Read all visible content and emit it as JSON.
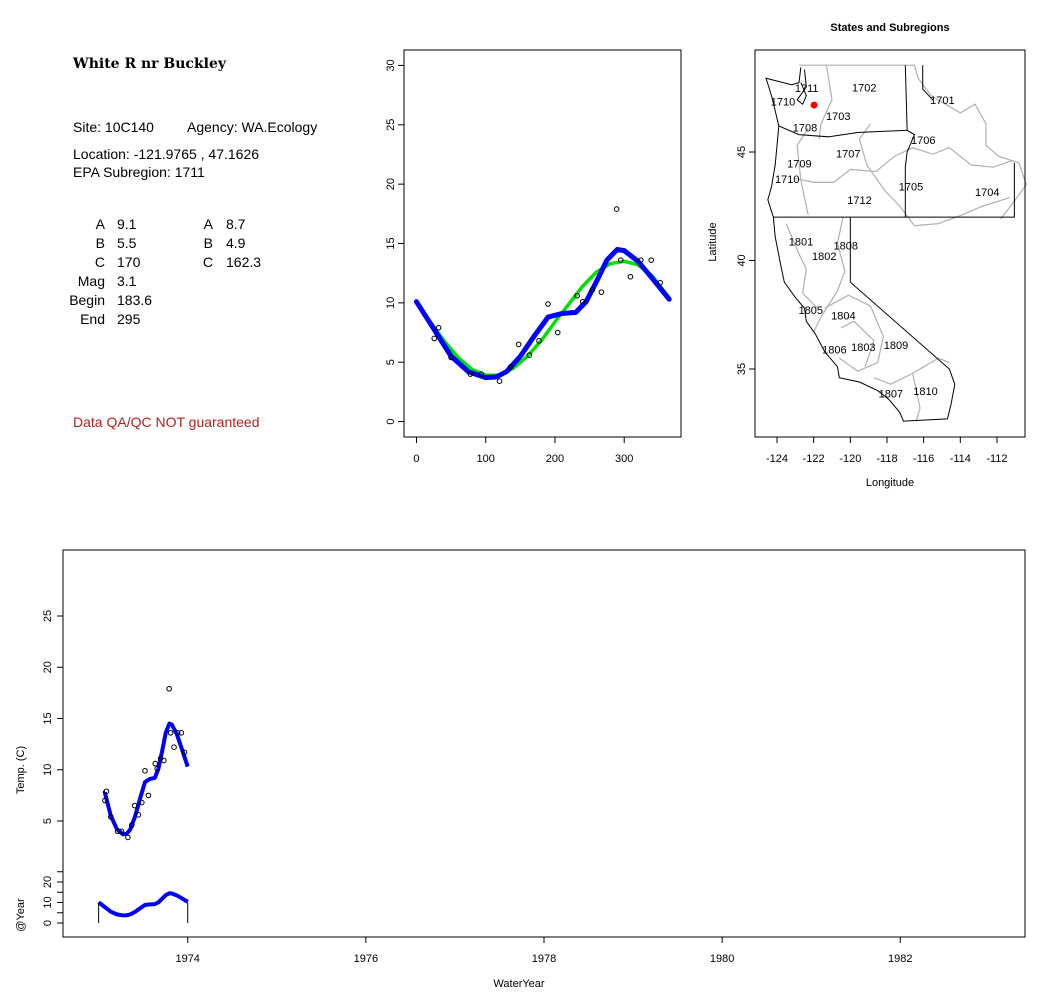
{
  "info": {
    "site_title": "White R nr Buckley",
    "site_label": "Site: 10C140",
    "agency_label": "Agency: WA.Ecology",
    "location_label": "Location: -121.9765 , 47.1626",
    "subregion_label": "EPA Subregion: 1711",
    "params_left": [
      {
        "name": "A",
        "value": "9.1"
      },
      {
        "name": "B",
        "value": "5.5"
      },
      {
        "name": "C",
        "value": "170"
      },
      {
        "name": "Mag",
        "value": "3.1"
      },
      {
        "name": "Begin",
        "value": "183.6"
      },
      {
        "name": "End",
        "value": "295"
      }
    ],
    "params_right": [
      {
        "name": "A",
        "value": "8.7"
      },
      {
        "name": "B",
        "value": "4.9"
      },
      {
        "name": "C",
        "value": "162.3"
      }
    ],
    "qa_note": "Data QA/QC NOT guaranteed"
  },
  "chart_data": [
    {
      "type": "scatter",
      "panel": "seasonal",
      "xlim": [
        -18,
        382
      ],
      "ylim": [
        -1.3,
        31.3
      ],
      "x_ticks": [
        0,
        100,
        200,
        300
      ],
      "y_ticks": [
        0,
        5,
        10,
        15,
        20,
        25,
        30
      ],
      "points": [
        [
          25.7,
          7.0
        ],
        [
          32,
          7.9
        ],
        [
          50,
          5.4
        ],
        [
          77.7,
          4.0
        ],
        [
          93.7,
          4.0
        ],
        [
          120,
          3.4
        ],
        [
          136,
          4.6
        ],
        [
          147.6,
          6.5
        ],
        [
          163,
          5.6
        ],
        [
          177,
          6.8
        ],
        [
          190,
          9.9
        ],
        [
          204,
          7.5
        ],
        [
          232,
          10.6
        ],
        [
          240,
          10.1
        ],
        [
          254,
          11.1
        ],
        [
          267,
          10.9
        ],
        [
          289,
          17.9
        ],
        [
          295,
          13.6
        ],
        [
          309,
          12.2
        ],
        [
          324,
          13.6
        ],
        [
          339,
          13.6
        ],
        [
          352,
          11.7
        ]
      ],
      "series": [
        {
          "color": "#00e000",
          "x": [
            0,
            20,
            40,
            60,
            80,
            100,
            120,
            140,
            160,
            180,
            200,
            220,
            240,
            260,
            280,
            300,
            320,
            340,
            365
          ],
          "y": [
            10.0,
            8.4,
            6.8,
            5.4,
            4.4,
            3.9,
            3.9,
            4.5,
            5.5,
            6.8,
            8.4,
            9.9,
            11.4,
            12.6,
            13.3,
            13.5,
            13.2,
            12.3,
            10.4
          ]
        },
        {
          "color": "#0000ff",
          "x": [
            0,
            25,
            50,
            75,
            100,
            115,
            130,
            150,
            170,
            190,
            210,
            230,
            245,
            260,
            275,
            290,
            300,
            320,
            340,
            365
          ],
          "y": [
            10.1,
            7.8,
            5.5,
            4.2,
            3.7,
            3.75,
            4.2,
            5.5,
            7.2,
            8.8,
            9.1,
            9.2,
            10.1,
            11.8,
            13.6,
            14.5,
            14.4,
            13.5,
            12.1,
            10.3
          ]
        }
      ]
    },
    {
      "type": "map",
      "title": "States and Subregions",
      "xlabel": "Longitude",
      "ylabel": "Latitude",
      "xlim": [
        -125.2,
        -110.4
      ],
      "ylim": [
        32.3,
        50.1
      ],
      "x_ticks": [
        -124,
        -122,
        -120,
        -118,
        -116,
        -114,
        -112
      ],
      "y_ticks": [
        35,
        40,
        45
      ],
      "site": {
        "lon": -121.9765,
        "lat": 47.1626,
        "color": "#ff0000"
      },
      "labels": [
        {
          "text": "1711",
          "lon": -122.38,
          "lat": 47.94
        },
        {
          "text": "1710",
          "lon": -123.67,
          "lat": 47.32
        },
        {
          "text": "1702",
          "lon": -119.24,
          "lat": 47.98
        },
        {
          "text": "1701",
          "lon": -114.98,
          "lat": 47.4
        },
        {
          "text": "1703",
          "lon": -120.66,
          "lat": 46.66
        },
        {
          "text": "1708",
          "lon": -122.47,
          "lat": 46.12
        },
        {
          "text": "1706",
          "lon": -116.02,
          "lat": 45.55
        },
        {
          "text": "1707",
          "lon": -120.11,
          "lat": 44.94
        },
        {
          "text": "1709",
          "lon": -122.78,
          "lat": 44.48
        },
        {
          "text": "1710",
          "lon": -123.44,
          "lat": 43.76
        },
        {
          "text": "1705",
          "lon": -116.69,
          "lat": 43.4
        },
        {
          "text": "1704",
          "lon": -112.53,
          "lat": 43.16
        },
        {
          "text": "1712",
          "lon": -119.5,
          "lat": 42.79
        },
        {
          "text": "1801",
          "lon": -122.69,
          "lat": 40.87
        },
        {
          "text": "1808",
          "lon": -120.25,
          "lat": 40.68
        },
        {
          "text": "1802",
          "lon": -121.42,
          "lat": 40.21
        },
        {
          "text": "1805",
          "lon": -122.16,
          "lat": 37.72
        },
        {
          "text": "1804",
          "lon": -120.38,
          "lat": 37.46
        },
        {
          "text": "1806",
          "lon": -120.87,
          "lat": 35.91
        },
        {
          "text": "1803",
          "lon": -119.29,
          "lat": 36.01
        },
        {
          "text": "1809",
          "lon": -117.51,
          "lat": 36.11
        },
        {
          "text": "1810",
          "lon": -115.9,
          "lat": 33.99
        },
        {
          "text": "1807",
          "lon": -117.79,
          "lat": 33.86
        }
      ]
    },
    {
      "type": "line",
      "panel": "timeseries",
      "xlabel": "WaterYear",
      "ylabel": "Temp. (C)",
      "ylabel2": "@Year",
      "xlim": [
        1972.6,
        1983.4
      ],
      "x_ticks": [
        1974,
        1976,
        1978,
        1980,
        1982
      ],
      "y_ticks": [
        5,
        10,
        15,
        20,
        25
      ],
      "y2_ticks": [
        0,
        10,
        20
      ],
      "year_start": 1973,
      "line_color": "#0000ff"
    }
  ]
}
